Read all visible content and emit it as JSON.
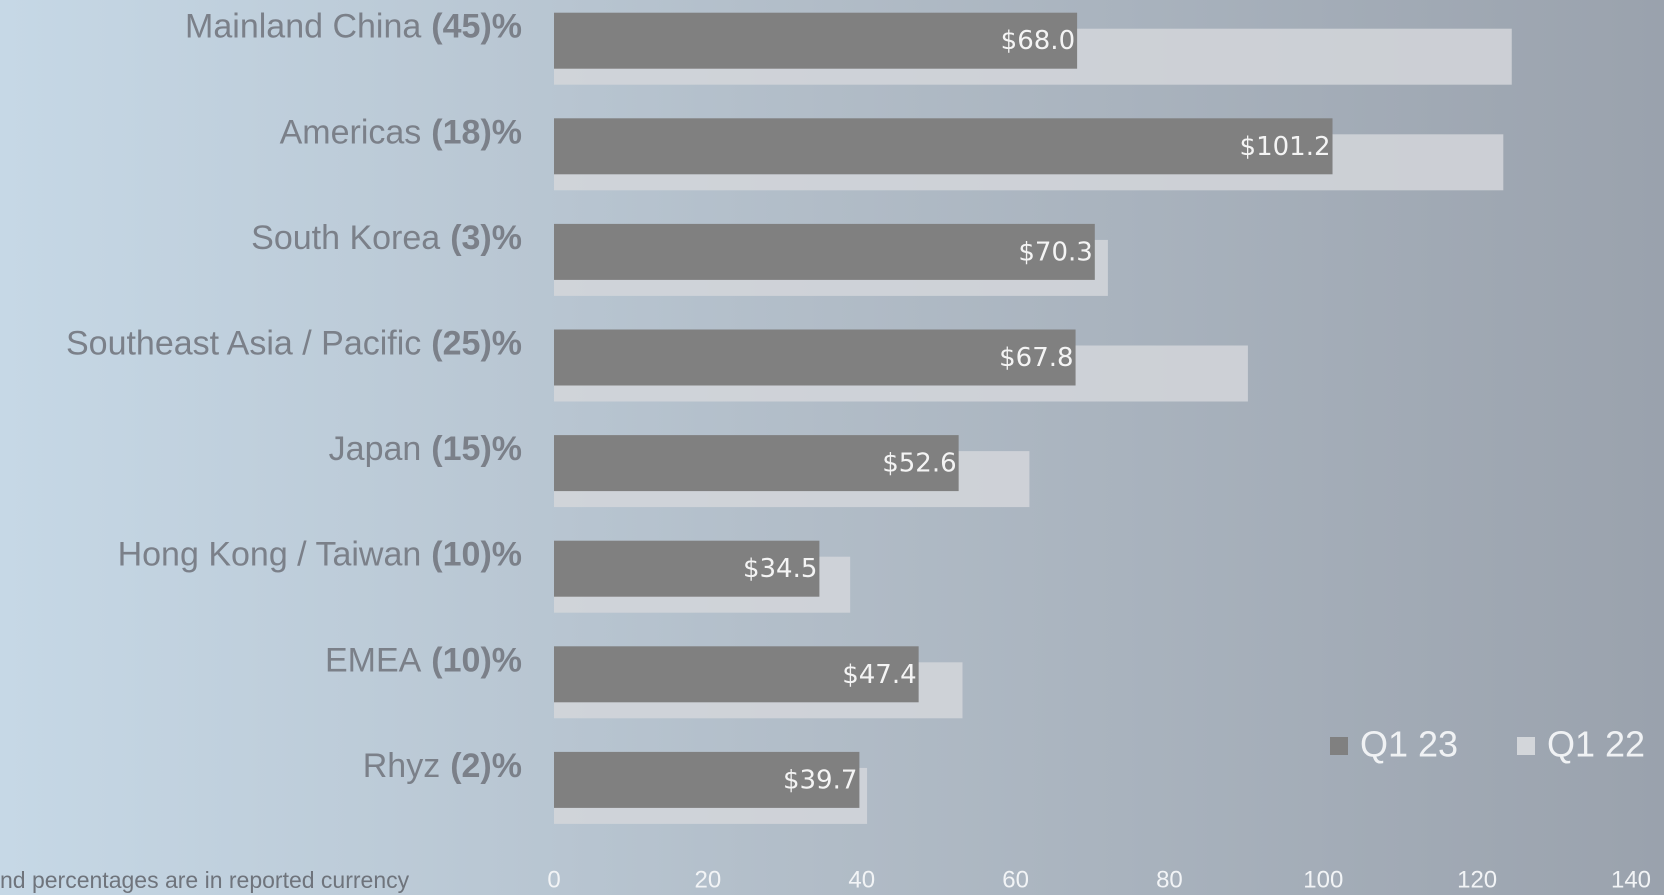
{
  "chart_data": {
    "type": "bar",
    "orientation": "horizontal",
    "categories": [
      "Mainland China",
      "Americas",
      "South Korea",
      "Southeast Asia / Pacific",
      "Japan",
      "Hong Kong / Taiwan",
      "EMEA",
      "Rhyz"
    ],
    "category_notes": [
      "(45)%",
      "(18)%",
      "(3)%",
      "(25)%",
      "(15)%",
      "(10)%",
      "(10)%",
      "(2)%"
    ],
    "series": [
      {
        "name": "Q1 23",
        "color": "#808080",
        "values": [
          68.0,
          101.2,
          70.3,
          67.8,
          52.6,
          34.5,
          47.4,
          39.7
        ],
        "value_labels": [
          "$68.0",
          "$101.2",
          "$70.3",
          "$67.8",
          "$52.6",
          "$34.5",
          "$47.4",
          "$39.7"
        ]
      },
      {
        "name": "Q1 22",
        "color": "#d3d6da",
        "values": [
          124.5,
          123.4,
          72.0,
          90.2,
          61.8,
          38.5,
          53.1,
          40.7
        ]
      }
    ],
    "xlim": [
      0,
      140
    ],
    "xticks": [
      0,
      20,
      40,
      60,
      80,
      100,
      120,
      140
    ],
    "note": "nd percentages are in reported currency"
  }
}
